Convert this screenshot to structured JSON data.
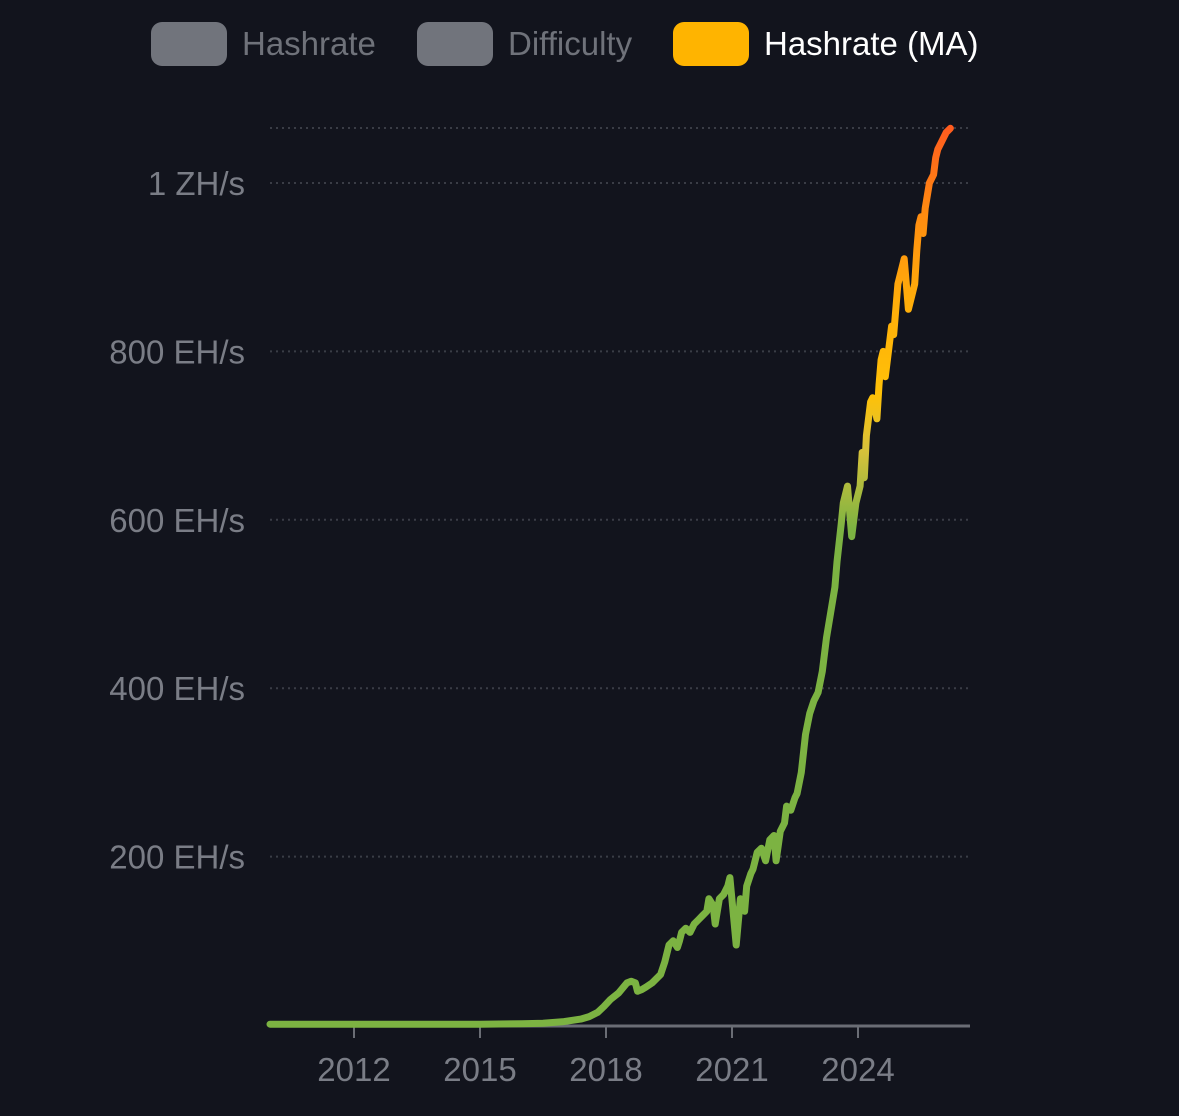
{
  "legend": {
    "items": [
      {
        "label": "Hashrate",
        "color": "#71747c",
        "state": "hidden"
      },
      {
        "label": "Difficulty",
        "color": "#71747c",
        "state": "hidden"
      },
      {
        "label": "Hashrate (MA)",
        "color": "#ffb400",
        "state": "visible"
      }
    ]
  },
  "colors": {
    "background": "#12141d",
    "grid": "#3a3d46",
    "axis": "#6a6d75",
    "tick_label": "#7a7d86",
    "gradient_low": "#7cb342",
    "gradient_mid": "#ffc107",
    "gradient_high": "#ff5a1f"
  },
  "chart_data": {
    "type": "line",
    "title": "",
    "xlabel": "",
    "ylabel": "",
    "legend_position": "top-center",
    "grid": "horizontal-dotted",
    "x_ticks": [
      "2012",
      "2015",
      "2018",
      "2021",
      "2024"
    ],
    "y_ticks": [
      "200 EH/s",
      "400 EH/s",
      "600 EH/s",
      "800 EH/s",
      "1 ZH/s"
    ],
    "ylim": [
      0,
      1070
    ],
    "xlim": [
      2010.0,
      2026.7
    ],
    "series": [
      {
        "name": "Hashrate (MA)",
        "unit": "EH/s",
        "x": [
          2010.0,
          2013.0,
          2015.0,
          2016.0,
          2016.5,
          2017.0,
          2017.4,
          2017.6,
          2017.8,
          2017.95,
          2018.1,
          2018.3,
          2018.5,
          2018.6,
          2018.7,
          2018.75,
          2018.85,
          2018.95,
          2019.1,
          2019.3,
          2019.4,
          2019.5,
          2019.6,
          2019.7,
          2019.75,
          2019.8,
          2019.9,
          2020.0,
          2020.1,
          2020.2,
          2020.3,
          2020.4,
          2020.45,
          2020.55,
          2020.6,
          2020.7,
          2020.8,
          2020.9,
          2020.95,
          2021.1,
          2021.2,
          2021.3,
          2021.35,
          2021.45,
          2021.5,
          2021.6,
          2021.7,
          2021.8,
          2021.9,
          2022.0,
          2022.05,
          2022.15,
          2022.25,
          2022.3,
          2022.4,
          2022.5,
          2022.55,
          2022.65,
          2022.75,
          2022.85,
          2022.95,
          2023.05,
          2023.15,
          2023.25,
          2023.35,
          2023.45,
          2023.5,
          2023.6,
          2023.65,
          2023.75,
          2023.85,
          2023.95,
          2024.05,
          2024.1,
          2024.15,
          2024.2,
          2024.3,
          2024.35,
          2024.45,
          2024.5,
          2024.55,
          2024.6,
          2024.65,
          2024.75,
          2024.8,
          2024.85,
          2024.95,
          2025.05,
          2025.1,
          2025.2,
          2025.3,
          2025.35,
          2025.4,
          2025.45,
          2025.5,
          2025.55,
          2025.6,
          2025.7,
          2025.8,
          2025.85,
          2025.9,
          2026.0,
          2026.05,
          2026.1,
          2026.2
        ],
        "values": [
          1,
          1,
          1,
          1.5,
          2,
          4,
          7,
          10,
          15,
          22,
          30,
          38,
          50,
          52,
          50,
          40,
          42,
          45,
          50,
          60,
          75,
          95,
          100,
          92,
          100,
          110,
          115,
          110,
          120,
          125,
          130,
          135,
          150,
          142,
          120,
          150,
          155,
          165,
          175,
          95,
          150,
          135,
          165,
          180,
          185,
          205,
          210,
          195,
          220,
          225,
          195,
          230,
          240,
          260,
          255,
          270,
          275,
          300,
          345,
          370,
          385,
          395,
          420,
          460,
          490,
          520,
          550,
          595,
          620,
          640,
          580,
          620,
          640,
          680,
          650,
          700,
          740,
          745,
          720,
          760,
          790,
          800,
          770,
          810,
          830,
          820,
          880,
          900,
          910,
          850,
          870,
          880,
          920,
          950,
          960,
          940,
          970,
          1000,
          1010,
          1030,
          1040,
          1050,
          1055,
          1060,
          1065
        ]
      }
    ]
  }
}
